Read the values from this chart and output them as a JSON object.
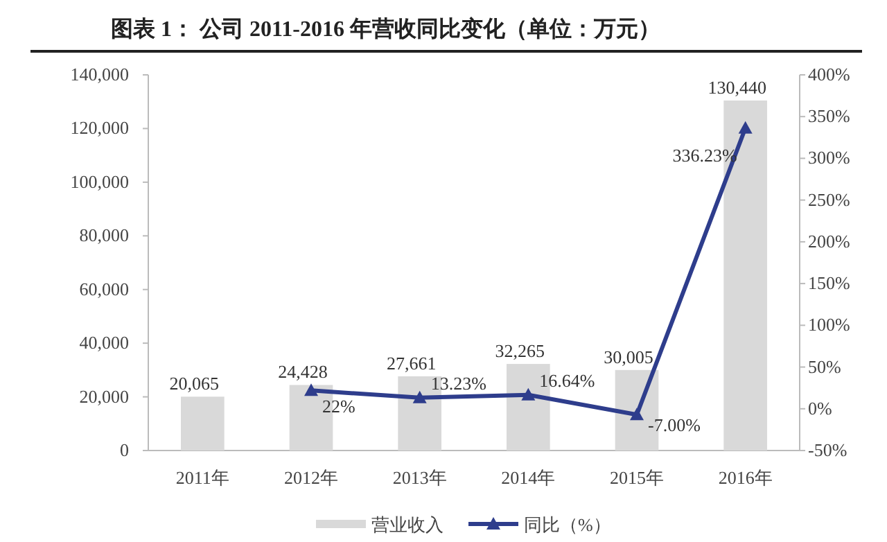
{
  "chart_data": {
    "type": "bar",
    "title": "图表 1： 公司 2011-2016 年营收同比变化（单位：万元）",
    "categories": [
      "2011年",
      "2012年",
      "2013年",
      "2014年",
      "2015年",
      "2016年"
    ],
    "series": [
      {
        "name": "营业收入",
        "color": "#d9d9d9",
        "values": [
          20065,
          24428,
          27661,
          32265,
          30005,
          130440
        ],
        "value_labels": [
          "20,065",
          "24,428",
          "27,661",
          "32,265",
          "30,005",
          "130,440"
        ]
      },
      {
        "name": "同比（%）",
        "type": "line",
        "axis": "y2",
        "color": "#2e3d8c",
        "marker": "triangle",
        "values": [
          null,
          22,
          13.23,
          16.64,
          -7.0,
          336.23
        ],
        "value_labels": [
          null,
          "22%",
          "13.23%",
          "16.64%",
          "-7.00%",
          "336.23%"
        ]
      }
    ],
    "ylim": [
      0,
      140000
    ],
    "yticks": [
      {
        "value": 0,
        "label": "0"
      },
      {
        "value": 20000,
        "label": "20,000"
      },
      {
        "value": 40000,
        "label": "40,000"
      },
      {
        "value": 60000,
        "label": "60,000"
      },
      {
        "value": 80000,
        "label": "80,000"
      },
      {
        "value": 100000,
        "label": "100,000"
      },
      {
        "value": 120000,
        "label": "120,000"
      },
      {
        "value": 140000,
        "label": "140,000"
      }
    ],
    "y2lim": [
      -50,
      400
    ],
    "y2ticks": [
      {
        "value": -50,
        "label": "-50%"
      },
      {
        "value": 0,
        "label": "0%"
      },
      {
        "value": 50,
        "label": "50%"
      },
      {
        "value": 100,
        "label": "100%"
      },
      {
        "value": 150,
        "label": "150%"
      },
      {
        "value": 200,
        "label": "200%"
      },
      {
        "value": 250,
        "label": "250%"
      },
      {
        "value": 300,
        "label": "300%"
      },
      {
        "value": 350,
        "label": "350%"
      },
      {
        "value": 400,
        "label": "400%"
      }
    ],
    "legend": "bottom",
    "grid": false
  }
}
